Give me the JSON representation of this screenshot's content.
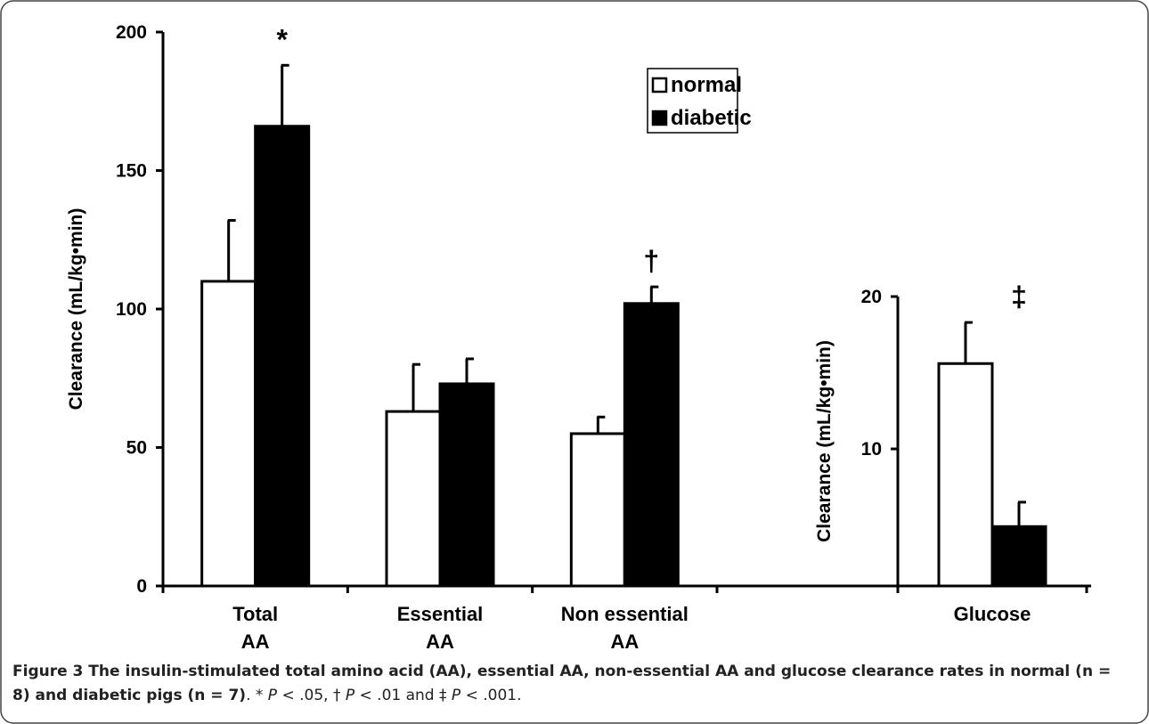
{
  "chart_data": [
    {
      "type": "bar",
      "y_label": "Clearance (mL/kg•min)",
      "categories": [
        "Total\nAA",
        "Essential\nAA",
        "Non essential\nAA"
      ],
      "series": [
        {
          "name": "normal",
          "color": "#ffffff",
          "values": [
            110,
            63,
            55
          ],
          "errors": [
            22,
            17,
            6
          ]
        },
        {
          "name": "diabetic",
          "color": "#000000",
          "values": [
            166,
            73,
            102
          ],
          "errors": [
            22,
            9,
            6
          ]
        }
      ],
      "annotations": [
        "*",
        null,
        "†"
      ],
      "ylim": [
        0,
        200
      ],
      "yticks": [
        0,
        50,
        100,
        150,
        200
      ],
      "legend": "top"
    },
    {
      "type": "bar",
      "y_label": "Clearance (mL/kg•min)",
      "categories": [
        "Glucose"
      ],
      "series": [
        {
          "name": "normal",
          "color": "#ffffff",
          "values": [
            15.6
          ],
          "errors": [
            2.7
          ]
        },
        {
          "name": "diabetic",
          "color": "#000000",
          "values": [
            4.9
          ],
          "errors": [
            1.6
          ]
        }
      ],
      "annotations": [
        "‡"
      ],
      "ylim": [
        1,
        20
      ],
      "yticks": [
        10,
        20
      ]
    }
  ],
  "caption": [
    {
      "text": "Figure 3 The insulin-stimulated total amino acid (AA), essential AA, non-essential AA and glucose clearance rates in normal (n = 8) and diabetic pigs (n = 7)",
      "bold": true
    },
    {
      "text": ". * "
    },
    {
      "text": "P",
      "italic": true
    },
    {
      "text": " < .05, † "
    },
    {
      "text": "P",
      "italic": true
    },
    {
      "text": " < .01 and ‡ "
    },
    {
      "text": "P",
      "italic": true
    },
    {
      "text": " < .001."
    }
  ]
}
